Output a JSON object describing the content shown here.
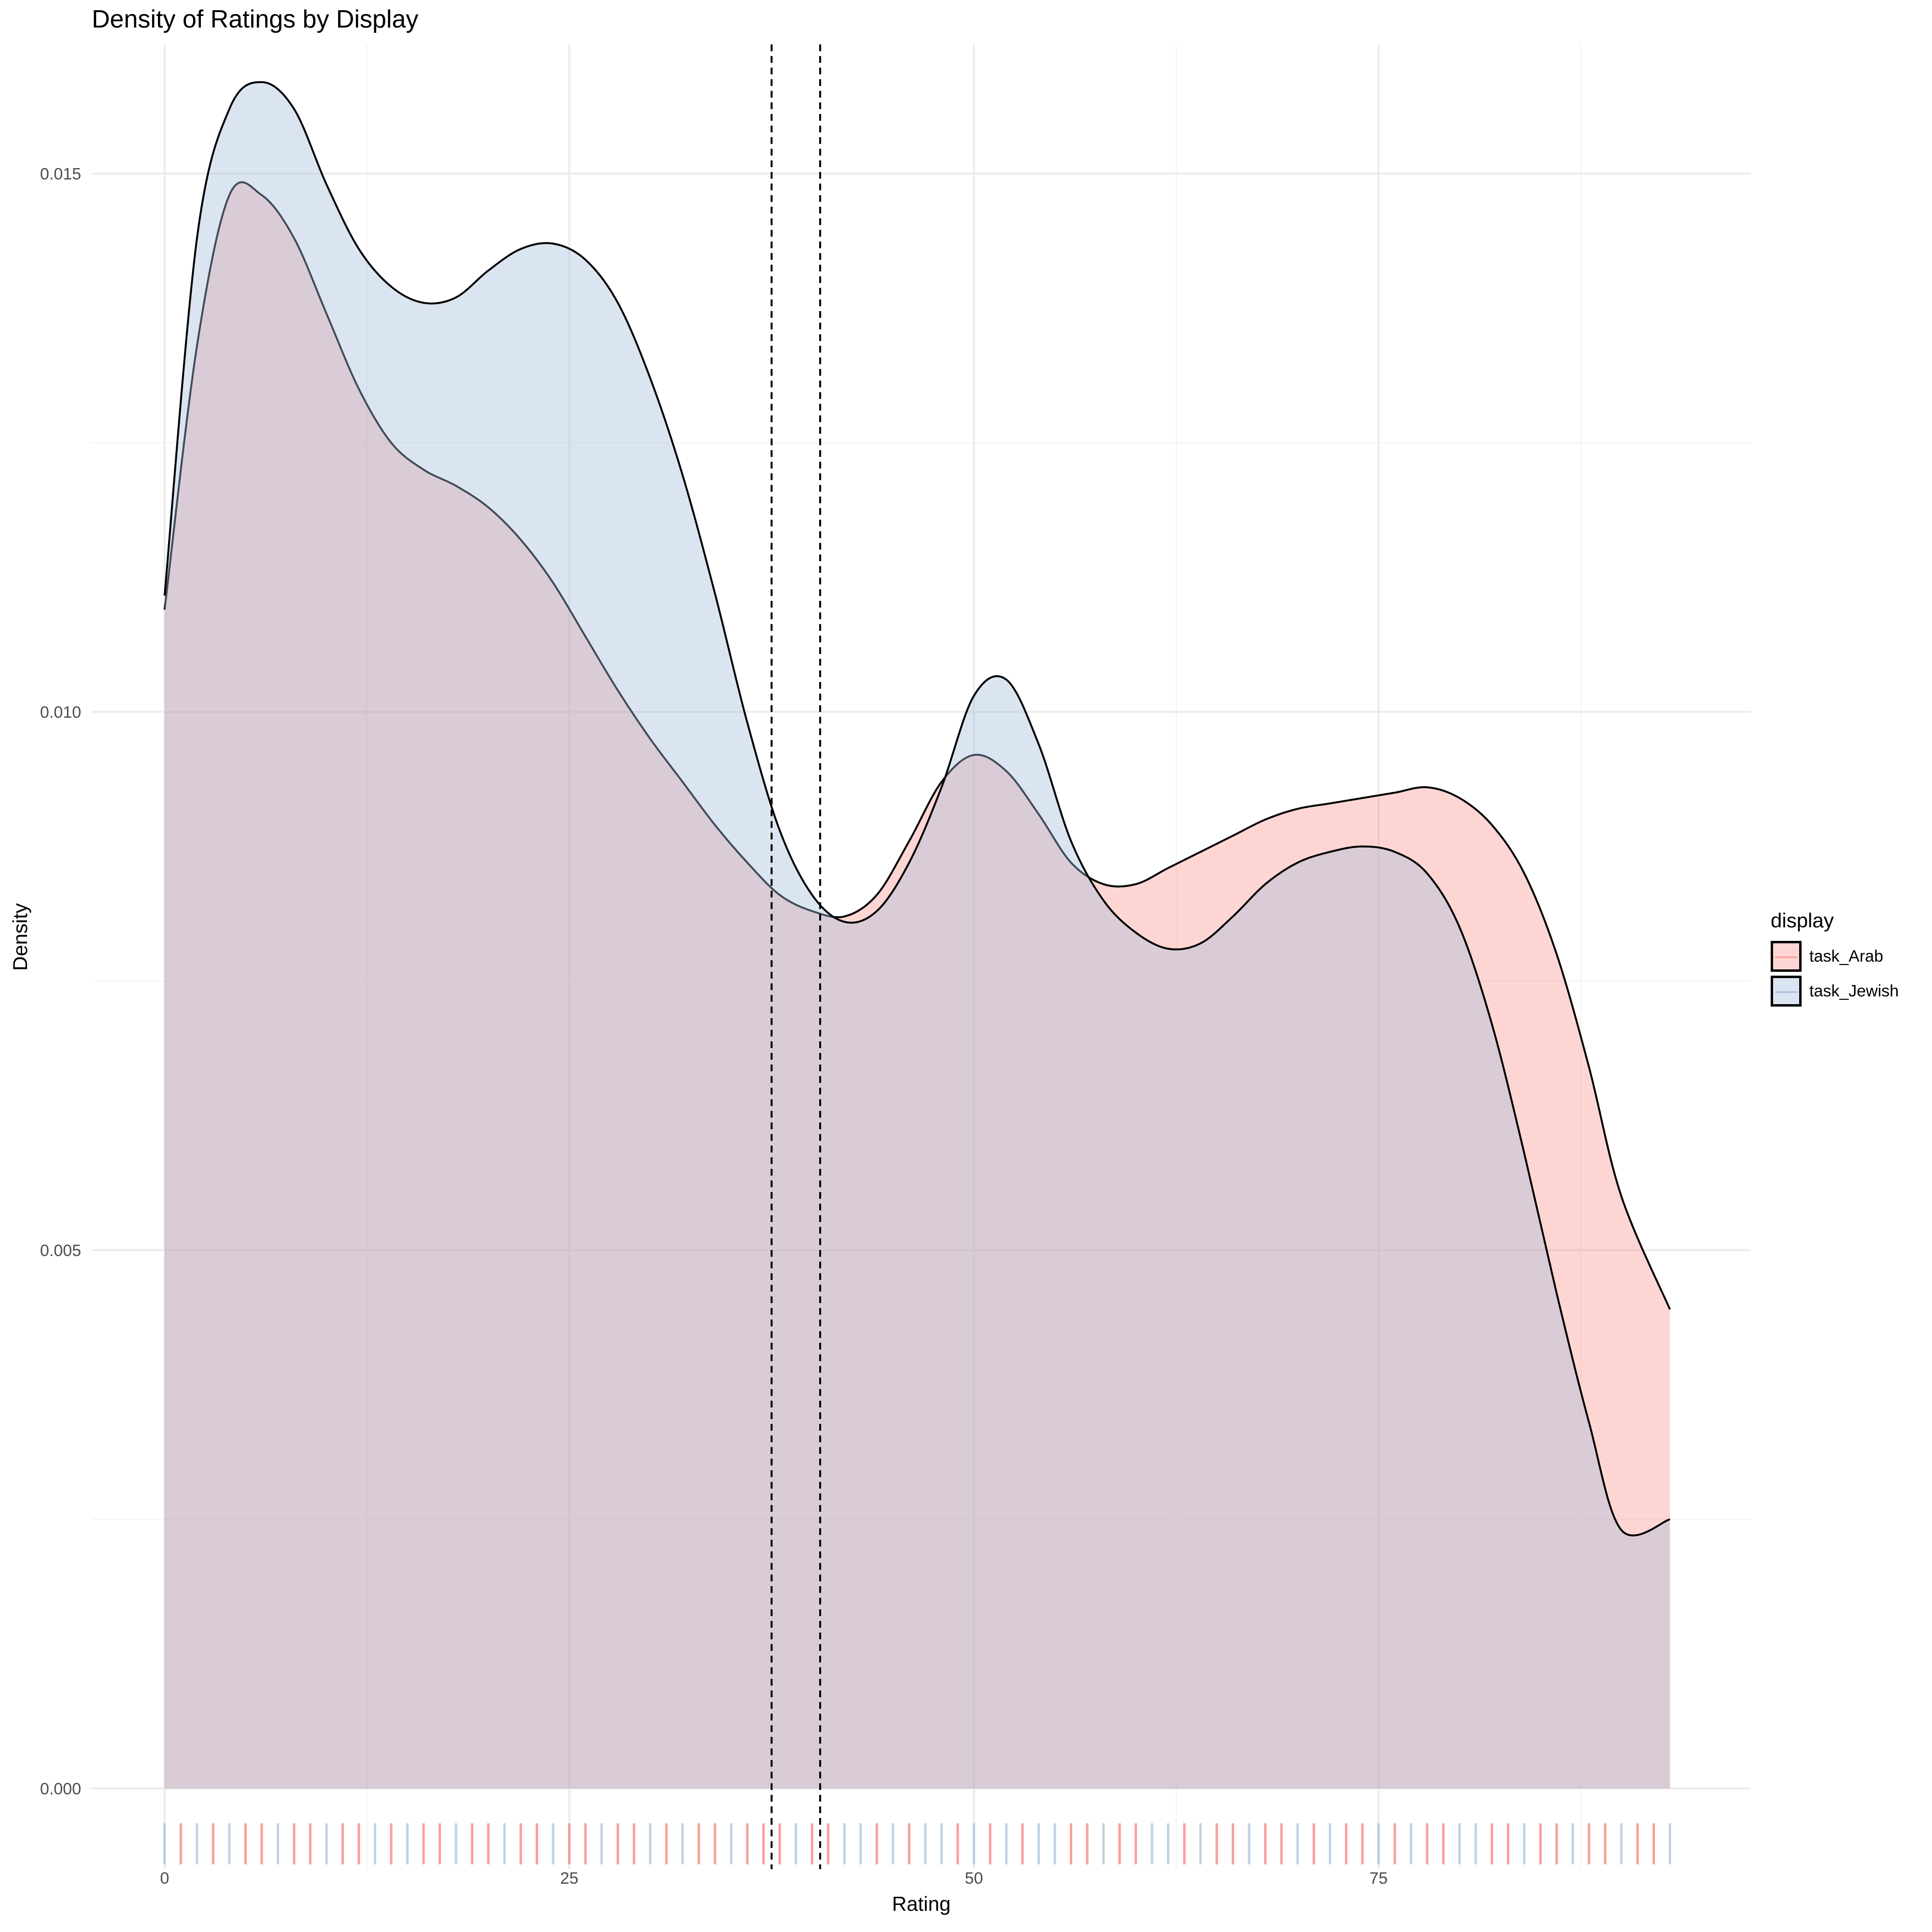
{
  "chart_data": {
    "type": "area",
    "subtype": "density",
    "title": "Density of Ratings by Display",
    "xlabel": "Rating",
    "ylabel": "Density",
    "xlim": [
      -4.5,
      98
    ],
    "ylim": [
      -0.00075,
      0.0162
    ],
    "x_ticks": [
      0,
      25,
      50,
      75
    ],
    "x_tick_labels": [
      "0",
      "25",
      "50",
      "75"
    ],
    "y_ticks": [
      0,
      0.005,
      0.01,
      0.015
    ],
    "y_tick_labels": [
      "0.000",
      "0.005",
      "0.010",
      "0.015"
    ],
    "grid": true,
    "legend_position": "right",
    "legend_title": "display",
    "series": [
      {
        "name": "task_Arab",
        "fill": "#F8766D",
        "fill_alpha": 0.3,
        "line": "#000000",
        "x": [
          0,
          2,
          4,
          6,
          8,
          10,
          12,
          14,
          16,
          18,
          20,
          22,
          24,
          26,
          28,
          30,
          32,
          34,
          36,
          38,
          40,
          42,
          44,
          46,
          48,
          50,
          52,
          54,
          56,
          58,
          60,
          62,
          64,
          66,
          68,
          70,
          72,
          74,
          76,
          78,
          80,
          82,
          84,
          86,
          88,
          90,
          93
        ],
        "y": [
          0.01095,
          0.0134,
          0.0148,
          0.0148,
          0.0144,
          0.0137,
          0.013,
          0.0125,
          0.01225,
          0.0121,
          0.0119,
          0.0116,
          0.0112,
          0.0107,
          0.0102,
          0.00975,
          0.00935,
          0.00895,
          0.0086,
          0.0083,
          0.00815,
          0.0081,
          0.0083,
          0.0088,
          0.00935,
          0.0096,
          0.00945,
          0.00905,
          0.0086,
          0.0084,
          0.0084,
          0.00855,
          0.0087,
          0.00885,
          0.009,
          0.0091,
          0.00915,
          0.0092,
          0.00925,
          0.0093,
          0.0092,
          0.00895,
          0.0085,
          0.00775,
          0.0067,
          0.0055,
          0.00445
        ]
      },
      {
        "name": "task_Jewish",
        "fill": "#A6BDDB",
        "fill_alpha": 0.4,
        "line": "#000000",
        "x": [
          0,
          2,
          4,
          6,
          8,
          10,
          12,
          14,
          16,
          18,
          20,
          22,
          24,
          26,
          28,
          30,
          32,
          34,
          36,
          38,
          40,
          42,
          44,
          46,
          48,
          50,
          52,
          54,
          56,
          58,
          60,
          62,
          64,
          66,
          68,
          70,
          72,
          74,
          76,
          78,
          80,
          82,
          84,
          86,
          88,
          90,
          93
        ],
        "y": [
          0.01108,
          0.0144,
          0.0156,
          0.01585,
          0.0156,
          0.0149,
          0.0143,
          0.01395,
          0.0138,
          0.01385,
          0.0141,
          0.0143,
          0.01435,
          0.0142,
          0.0138,
          0.0131,
          0.0122,
          0.0111,
          0.0099,
          0.0089,
          0.0083,
          0.00805,
          0.00815,
          0.0086,
          0.0093,
          0.01015,
          0.0103,
          0.0097,
          0.0088,
          0.00825,
          0.00795,
          0.0078,
          0.00785,
          0.0081,
          0.0084,
          0.0086,
          0.0087,
          0.00875,
          0.0087,
          0.0085,
          0.008,
          0.0071,
          0.0059,
          0.0046,
          0.0034,
          0.0024,
          0.0025
        ]
      }
    ],
    "vlines": [
      {
        "x": 37.5,
        "style": "dashed"
      },
      {
        "x": 40.5,
        "style": "dashed"
      }
    ],
    "rug": {
      "colors": [
        "#F8766D",
        "#A6BDDB"
      ],
      "positions": [
        0,
        1,
        2,
        3,
        4,
        5,
        6,
        7,
        8,
        9,
        10,
        11,
        12,
        13,
        14,
        15,
        16,
        17,
        18,
        19,
        20,
        21,
        22,
        23,
        24,
        25,
        26,
        27,
        28,
        29,
        30,
        31,
        32,
        33,
        34,
        35,
        36,
        37,
        38,
        39,
        40,
        41,
        42,
        43,
        44,
        45,
        46,
        47,
        48,
        49,
        50,
        51,
        52,
        53,
        54,
        55,
        56,
        57,
        58,
        59,
        60,
        61,
        62,
        63,
        64,
        65,
        66,
        67,
        68,
        69,
        70,
        71,
        72,
        73,
        74,
        75,
        76,
        77,
        78,
        79,
        80,
        81,
        82,
        83,
        84,
        85,
        86,
        87,
        88,
        89,
        90,
        91,
        92,
        93
      ],
      "series_index": [
        1,
        0,
        1,
        0,
        1,
        0,
        0,
        1,
        0,
        0,
        1,
        0,
        0,
        1,
        0,
        1,
        0,
        0,
        1,
        0,
        0,
        1,
        0,
        0,
        1,
        0,
        0,
        1,
        0,
        0,
        1,
        0,
        1,
        0,
        0,
        1,
        0,
        0,
        0,
        1,
        0,
        0,
        1,
        1,
        0,
        1,
        0,
        1,
        1,
        0,
        1,
        0,
        1,
        0,
        1,
        1,
        0,
        0,
        1,
        0,
        0,
        1,
        1,
        0,
        1,
        0,
        0,
        1,
        0,
        0,
        1,
        0,
        1,
        0,
        0,
        1,
        0,
        1,
        0,
        0,
        1,
        1,
        0,
        0,
        1,
        0,
        0,
        1,
        0,
        0,
        1,
        0,
        0,
        1
      ]
    }
  }
}
